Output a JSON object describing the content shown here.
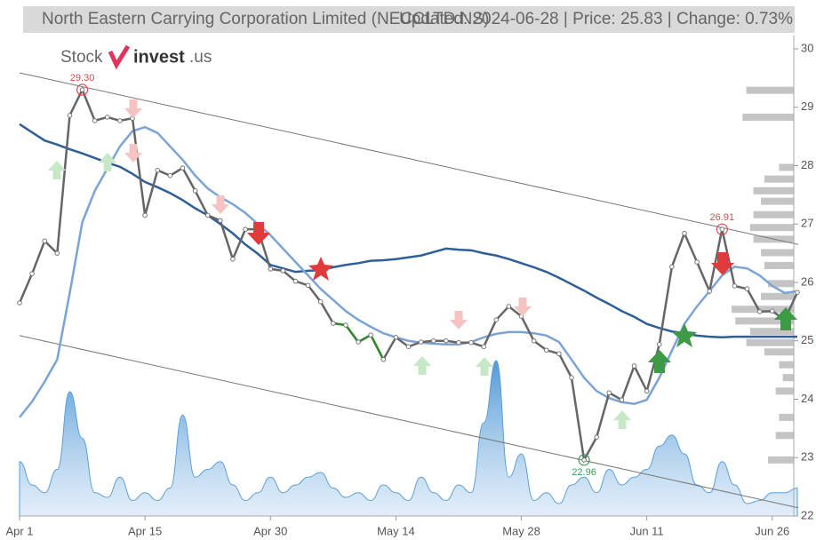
{
  "chart_data": {
    "type": "line",
    "title": "North Eastern Carrying Corporation Limited (NECCLTD.NS)",
    "subtitle": "Updated: 2024-06-28 | Price: 25.83 | Change: 0.73%",
    "logo": {
      "left": "Stock",
      "bold": "invest",
      "suffix": ".us"
    },
    "categories": [
      "Apr 1",
      null,
      null,
      null,
      null,
      null,
      null,
      null,
      null,
      null,
      "Apr 15",
      null,
      null,
      null,
      null,
      null,
      null,
      null,
      null,
      null,
      "Apr 30",
      null,
      null,
      null,
      null,
      null,
      null,
      null,
      null,
      null,
      "May 14",
      null,
      null,
      null,
      null,
      null,
      null,
      null,
      null,
      null,
      "May 28",
      null,
      null,
      null,
      null,
      null,
      null,
      null,
      null,
      null,
      "Jun 11",
      null,
      null,
      null,
      null,
      null,
      null,
      null,
      null,
      null,
      "Jun 26",
      null,
      null
    ],
    "series": [
      {
        "color": "#666666",
        "values": [
          25.65,
          26.15,
          26.71,
          26.5,
          28.86,
          29.3,
          28.77,
          28.83,
          28.77,
          28.81,
          27.15,
          27.92,
          27.83,
          27.96,
          27.57,
          27.15,
          27.06,
          26.4,
          26.91,
          26.91,
          26.23,
          26.2,
          26.02,
          25.95,
          25.67,
          25.3,
          25.27,
          24.98,
          25.1,
          24.68,
          25.06,
          24.9,
          24.98,
          25.0,
          25.0,
          24.97,
          24.97,
          24.9,
          25.36,
          25.59,
          25.42,
          25.0,
          24.84,
          24.78,
          24.37,
          22.96,
          23.35,
          24.11,
          23.99,
          24.57,
          24.14,
          24.94,
          26.27,
          26.84,
          26.35,
          25.85,
          26.91,
          25.94,
          25.89,
          25.5,
          25.51,
          25.36,
          25.83
        ]
      },
      {
        "color": "#7ba3d6",
        "values": [
          23.69,
          23.96,
          24.3,
          24.68,
          25.82,
          27.03,
          27.57,
          27.95,
          28.33,
          28.59,
          28.66,
          28.56,
          28.33,
          28.1,
          27.83,
          27.61,
          27.46,
          27.34,
          27.19,
          27.0,
          26.81,
          26.58,
          26.35,
          26.12,
          25.89,
          25.7,
          25.51,
          25.36,
          25.24,
          25.13,
          25.06,
          25.0,
          24.97,
          24.95,
          24.94,
          24.94,
          24.98,
          25.06,
          25.12,
          25.15,
          25.15,
          25.13,
          25.09,
          24.98,
          24.68,
          24.37,
          24.14,
          24.02,
          23.95,
          23.92,
          23.99,
          24.37,
          24.83,
          25.29,
          25.59,
          25.85,
          26.12,
          26.27,
          26.24,
          26.12,
          25.94,
          25.82,
          25.85
        ]
      },
      {
        "color": "#2f5f97",
        "values": [
          28.71,
          28.57,
          28.43,
          28.36,
          28.28,
          28.21,
          28.13,
          28.05,
          27.98,
          27.86,
          27.72,
          27.63,
          27.53,
          27.41,
          27.27,
          27.15,
          27.0,
          26.84,
          26.65,
          26.49,
          26.3,
          26.24,
          26.18,
          26.2,
          26.21,
          26.26,
          26.3,
          26.33,
          26.37,
          26.38,
          26.4,
          26.43,
          26.46,
          26.52,
          26.58,
          26.56,
          26.55,
          26.5,
          26.46,
          26.4,
          26.33,
          26.26,
          26.18,
          26.08,
          25.97,
          25.86,
          25.74,
          25.63,
          25.51,
          25.41,
          25.29,
          25.22,
          25.16,
          25.13,
          25.09,
          25.07,
          25.06,
          25.07,
          25.07,
          25.07,
          25.07,
          25.07,
          25.07
        ]
      }
    ],
    "highlight": {
      "from": 25,
      "to": 29,
      "color": "#2e8b2e"
    },
    "volume": {
      "color": "#5a9fd8",
      "values": [
        35,
        20,
        15,
        30,
        80,
        50,
        15,
        12,
        25,
        10,
        15,
        10,
        18,
        65,
        25,
        30,
        35,
        20,
        10,
        15,
        25,
        15,
        20,
        25,
        28,
        18,
        12,
        15,
        10,
        20,
        15,
        10,
        25,
        15,
        10,
        20,
        15,
        60,
        100,
        25,
        40,
        10,
        15,
        8,
        20,
        25,
        15,
        30,
        20,
        25,
        30,
        45,
        52,
        40,
        20,
        15,
        35,
        20,
        8,
        10,
        15,
        15,
        18
      ]
    },
    "volume_profile": {
      "color": "#c4c4c4",
      "prices": [
        29.29,
        28.83,
        27.97,
        27.77,
        27.57,
        27.39,
        27.16,
        26.94,
        26.74,
        26.51,
        26.29,
        25.98,
        25.76,
        25.54,
        25.34,
        25.16,
        24.97,
        24.81,
        24.59,
        24.37,
        24.14,
        23.69,
        23.38,
        22.96
      ],
      "volumes": [
        100,
        108,
        31,
        62,
        85,
        69,
        85,
        92,
        85,
        69,
        62,
        54,
        69,
        131,
        123,
        92,
        100,
        62,
        31,
        23,
        38,
        31,
        38,
        54
      ]
    },
    "trend_lines": [
      {
        "start": 29.59,
        "end": 26.65
      },
      {
        "start": 25.09,
        "end": 22.14
      }
    ],
    "annotations": [
      {
        "point": 5,
        "label": "29.30",
        "color": "#e24b4b",
        "position": "above"
      },
      {
        "point": 56,
        "label": "26.91",
        "color": "#e24b4b",
        "position": "above"
      },
      {
        "point": 45,
        "label": "22.96",
        "color": "#3a9a5a",
        "position": "below"
      }
    ],
    "ylim": [
      22,
      30
    ],
    "yticks": [
      22,
      23,
      24,
      25,
      26,
      27,
      28,
      29,
      30
    ]
  }
}
